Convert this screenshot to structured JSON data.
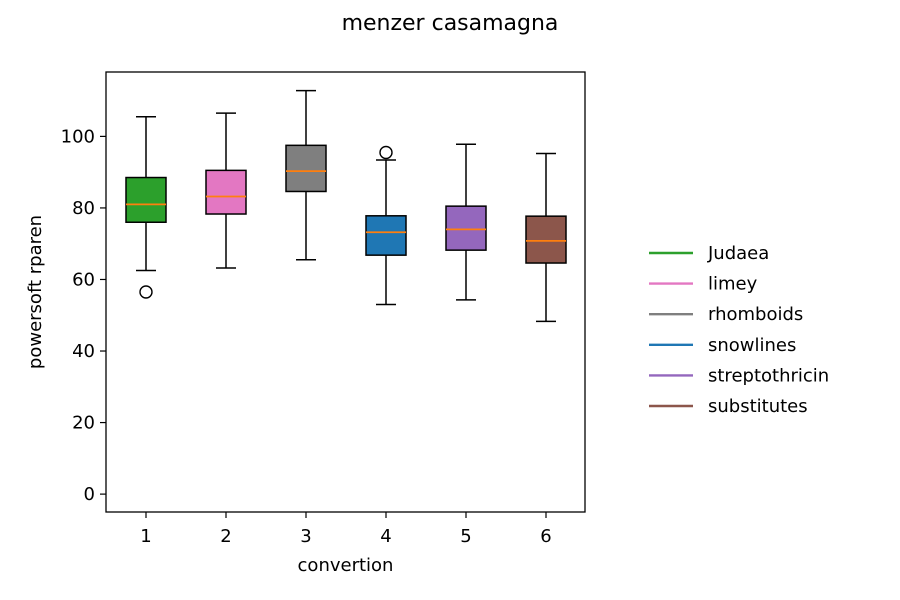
{
  "chart_data": {
    "type": "box",
    "title": "menzer casamagna",
    "xlabel": "convertion",
    "ylabel": "powersoft rparen",
    "ylim": [
      -5,
      118
    ],
    "yticks": [
      0,
      20,
      40,
      60,
      80,
      100
    ],
    "categories": [
      "1",
      "2",
      "3",
      "4",
      "5",
      "6"
    ],
    "grid": false,
    "legend_position": "right",
    "median_color": "#ff7f0e",
    "series": [
      {
        "name": "Judaea",
        "color": "#2ca02c",
        "whisker_low": 62.5,
        "q1": 76,
        "median": 81,
        "q3": 88.5,
        "whisker_high": 105.5,
        "outliers": [
          56.5
        ]
      },
      {
        "name": "limey",
        "color": "#e377c2",
        "whisker_low": 63.2,
        "q1": 78.3,
        "median": 83.2,
        "q3": 90.5,
        "whisker_high": 106.5,
        "outliers": []
      },
      {
        "name": "rhomboids",
        "color": "#7f7f7f",
        "whisker_low": 65.5,
        "q1": 84.6,
        "median": 90.3,
        "q3": 97.5,
        "whisker_high": 112.8,
        "outliers": []
      },
      {
        "name": "snowlines",
        "color": "#1f77b4",
        "whisker_low": 53,
        "q1": 66.8,
        "median": 73.2,
        "q3": 77.8,
        "whisker_high": 93.4,
        "outliers": [
          95.5
        ]
      },
      {
        "name": "streptothricin",
        "color": "#9467bd",
        "whisker_low": 54.3,
        "q1": 68.2,
        "median": 74,
        "q3": 80.5,
        "whisker_high": 97.8,
        "outliers": []
      },
      {
        "name": "substitutes",
        "color": "#8c564b",
        "whisker_low": 48.3,
        "q1": 64.6,
        "median": 70.8,
        "q3": 77.7,
        "whisker_high": 95.2,
        "outliers": []
      }
    ]
  }
}
